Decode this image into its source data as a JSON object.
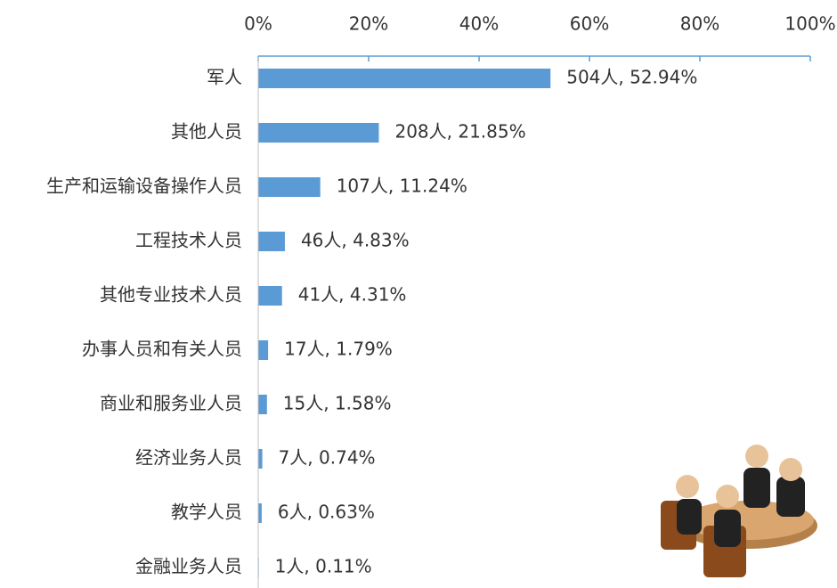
{
  "chart_data": {
    "type": "bar",
    "orientation": "horizontal",
    "categories": [
      "军人",
      "其他人员",
      "生产和运输设备操作人员",
      "工程技术人员",
      "其他专业技术人员",
      "办事人员和有关人员",
      "商业和服务业人员",
      "经济业务人员",
      "教学人员",
      "金融业务人员"
    ],
    "values": [
      52.94,
      21.85,
      11.24,
      4.83,
      4.31,
      1.79,
      1.58,
      0.74,
      0.63,
      0.11
    ],
    "value_labels": [
      "504人, 52.94%",
      "208人, 21.85%",
      "107人, 11.24%",
      "46人, 4.83%",
      "41人, 4.31%",
      "17人, 1.79%",
      "15人, 1.58%",
      "7人, 0.74%",
      "6人, 0.63%",
      "1人, 0.11%"
    ],
    "color": "#5b9bd5",
    "xlim": [
      0,
      100
    ],
    "xticks": [
      {
        "value": 0,
        "label": "0%"
      },
      {
        "value": 20,
        "label": "20%"
      },
      {
        "value": 40,
        "label": "40%"
      },
      {
        "value": 60,
        "label": "60%"
      },
      {
        "value": 80,
        "label": "80%"
      },
      {
        "value": 100,
        "label": "100%"
      }
    ]
  }
}
